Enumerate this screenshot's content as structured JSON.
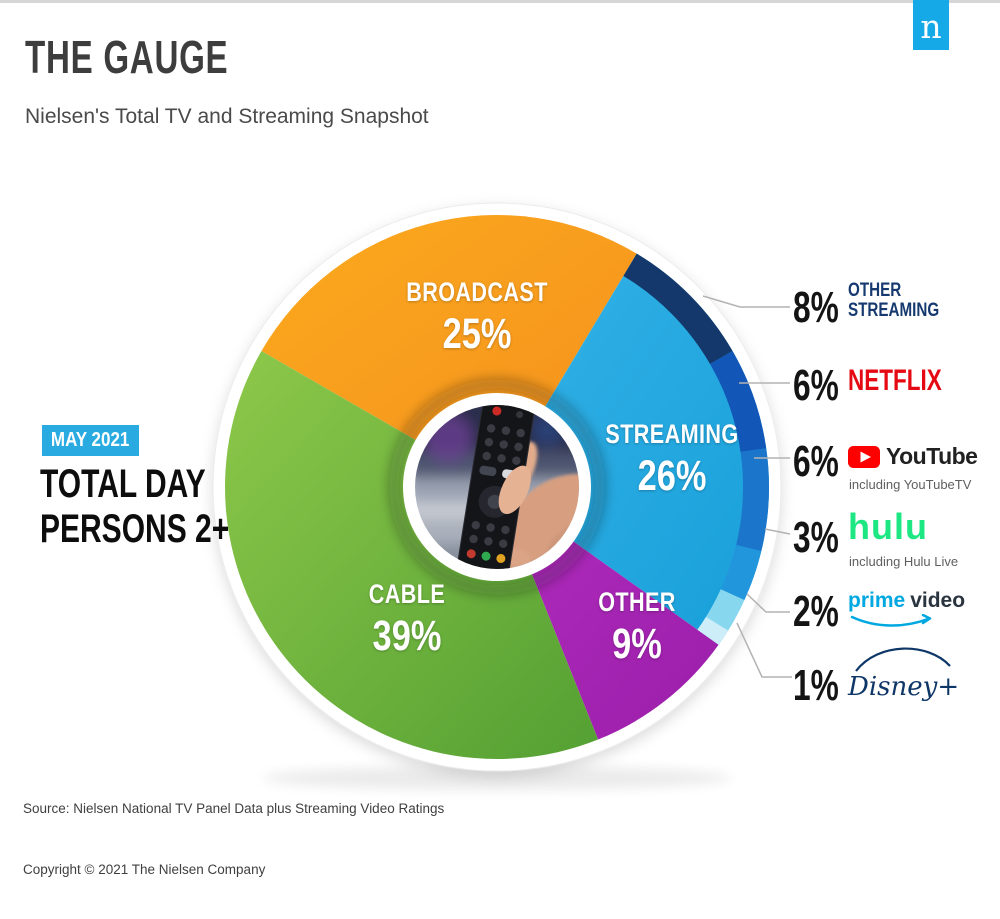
{
  "page": {
    "title": "THE GAUGE",
    "subtitle": "Nielsen's Total TV and Streaming Snapshot",
    "logo_letter": "n",
    "source": "Source: Nielsen National TV Panel Data plus Streaming Video Ratings",
    "copyright": "Copyright © 2021 The Nielsen Company"
  },
  "badge": {
    "period_label": "MAY 2021",
    "line1": "TOTAL DAY",
    "line2": "PERSONS 2+"
  },
  "chart_data": {
    "type": "pie",
    "title": "The Gauge — Nielsen's Total TV and Streaming Snapshot",
    "period": "May 2021",
    "universe": "Total Day, Persons 2+",
    "unit": "percent of total TV time",
    "donut": true,
    "legend_position": "right",
    "start_angle_deg": -60,
    "segments": [
      {
        "name": "Broadcast",
        "label": "BROADCAST",
        "value": 25,
        "pct_label": "25%",
        "color_start": "#fbaa1f",
        "color_end": "#f5901c"
      },
      {
        "name": "Streaming",
        "label": "STREAMING",
        "value": 26,
        "pct_label": "26%",
        "color_start": "#33b2e7",
        "color_end": "#189fd9"
      },
      {
        "name": "Other",
        "label": "OTHER",
        "value": 9,
        "pct_label": "9%",
        "color_start": "#b12cbe",
        "color_end": "#9a1ea9"
      },
      {
        "name": "Cable",
        "label": "CABLE",
        "value": 39,
        "pct_label": "39%",
        "color_start": "#8dc84a",
        "color_end": "#54a033"
      }
    ],
    "breakdown_parent": "Streaming",
    "breakdown": [
      {
        "name": "Other Streaming",
        "label1": "OTHER",
        "label2": "STREAMING",
        "value": 8,
        "pct_label": "8%",
        "color": "#14386b"
      },
      {
        "name": "Netflix",
        "logo_text": "NETFLIX",
        "value": 6,
        "pct_label": "6%",
        "color": "#1257b8"
      },
      {
        "name": "YouTube",
        "logo_text": "YouTube",
        "sub": "including YouTubeTV",
        "value": 6,
        "pct_label": "6%",
        "color": "#1b76cb"
      },
      {
        "name": "Hulu",
        "logo_text": "hulu",
        "sub": "including Hulu Live",
        "value": 3,
        "pct_label": "3%",
        "color": "#2196dc"
      },
      {
        "name": "Prime Video",
        "logo_word1": "prime",
        "logo_word2": "video",
        "value": 2,
        "pct_label": "2%",
        "color": "#87d7ef"
      },
      {
        "name": "Disney+",
        "logo_text": "Disney+",
        "value": 1,
        "pct_label": "1%",
        "color": "#cdeef9"
      }
    ]
  }
}
